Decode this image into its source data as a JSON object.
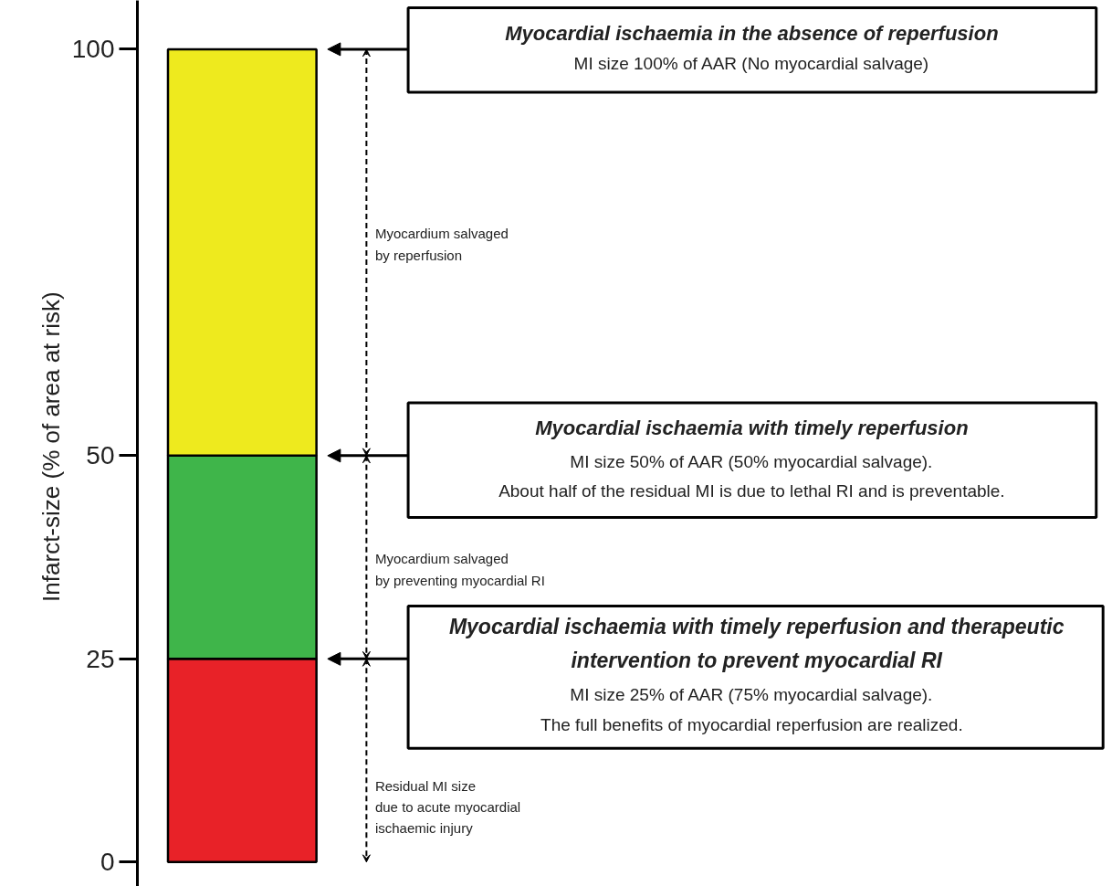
{
  "chart_data": {
    "type": "bar",
    "stacked": true,
    "categories": [
      null
    ],
    "ylabel": "Infarct-size (% of  area at risk)",
    "ylim": [
      -3,
      106
    ],
    "yticks": [
      0,
      25,
      50,
      100
    ],
    "tick_labels": "y",
    "series": [
      {
        "color": "#e82228",
        "values": [
          25
        ]
      },
      {
        "color": "#3fb54a",
        "values": [
          25
        ]
      },
      {
        "color": "#eeea1e",
        "values": [
          50
        ]
      }
    ],
    "annotations": [
      "Myocardial ischaemia in the absence of reperfusion",
      "MI size 100% of AAR (No myocardial salvage)",
      "Myocardial ischaemia with timely reperfusion",
      "MI size 50% of AAR (50% myocardial salvage).\nAbout half of the residual MI is due to lethal RI and is preventable.",
      "Myocardial ischaemia with timely reperfusion and therapeutic\nintervention to prevent myocardial RI",
      "MI size 25% of AAR (75% myocardial salvage).\nThe full benefits of myocardial reperfusion are realized.",
      "Myocardium salvaged\nby reperfusion",
      "Myocardium salvaged\nby preventing myocardial RI",
      "Residual MI size\ndue to acute myocardial\nischaemic injury"
    ]
  }
}
